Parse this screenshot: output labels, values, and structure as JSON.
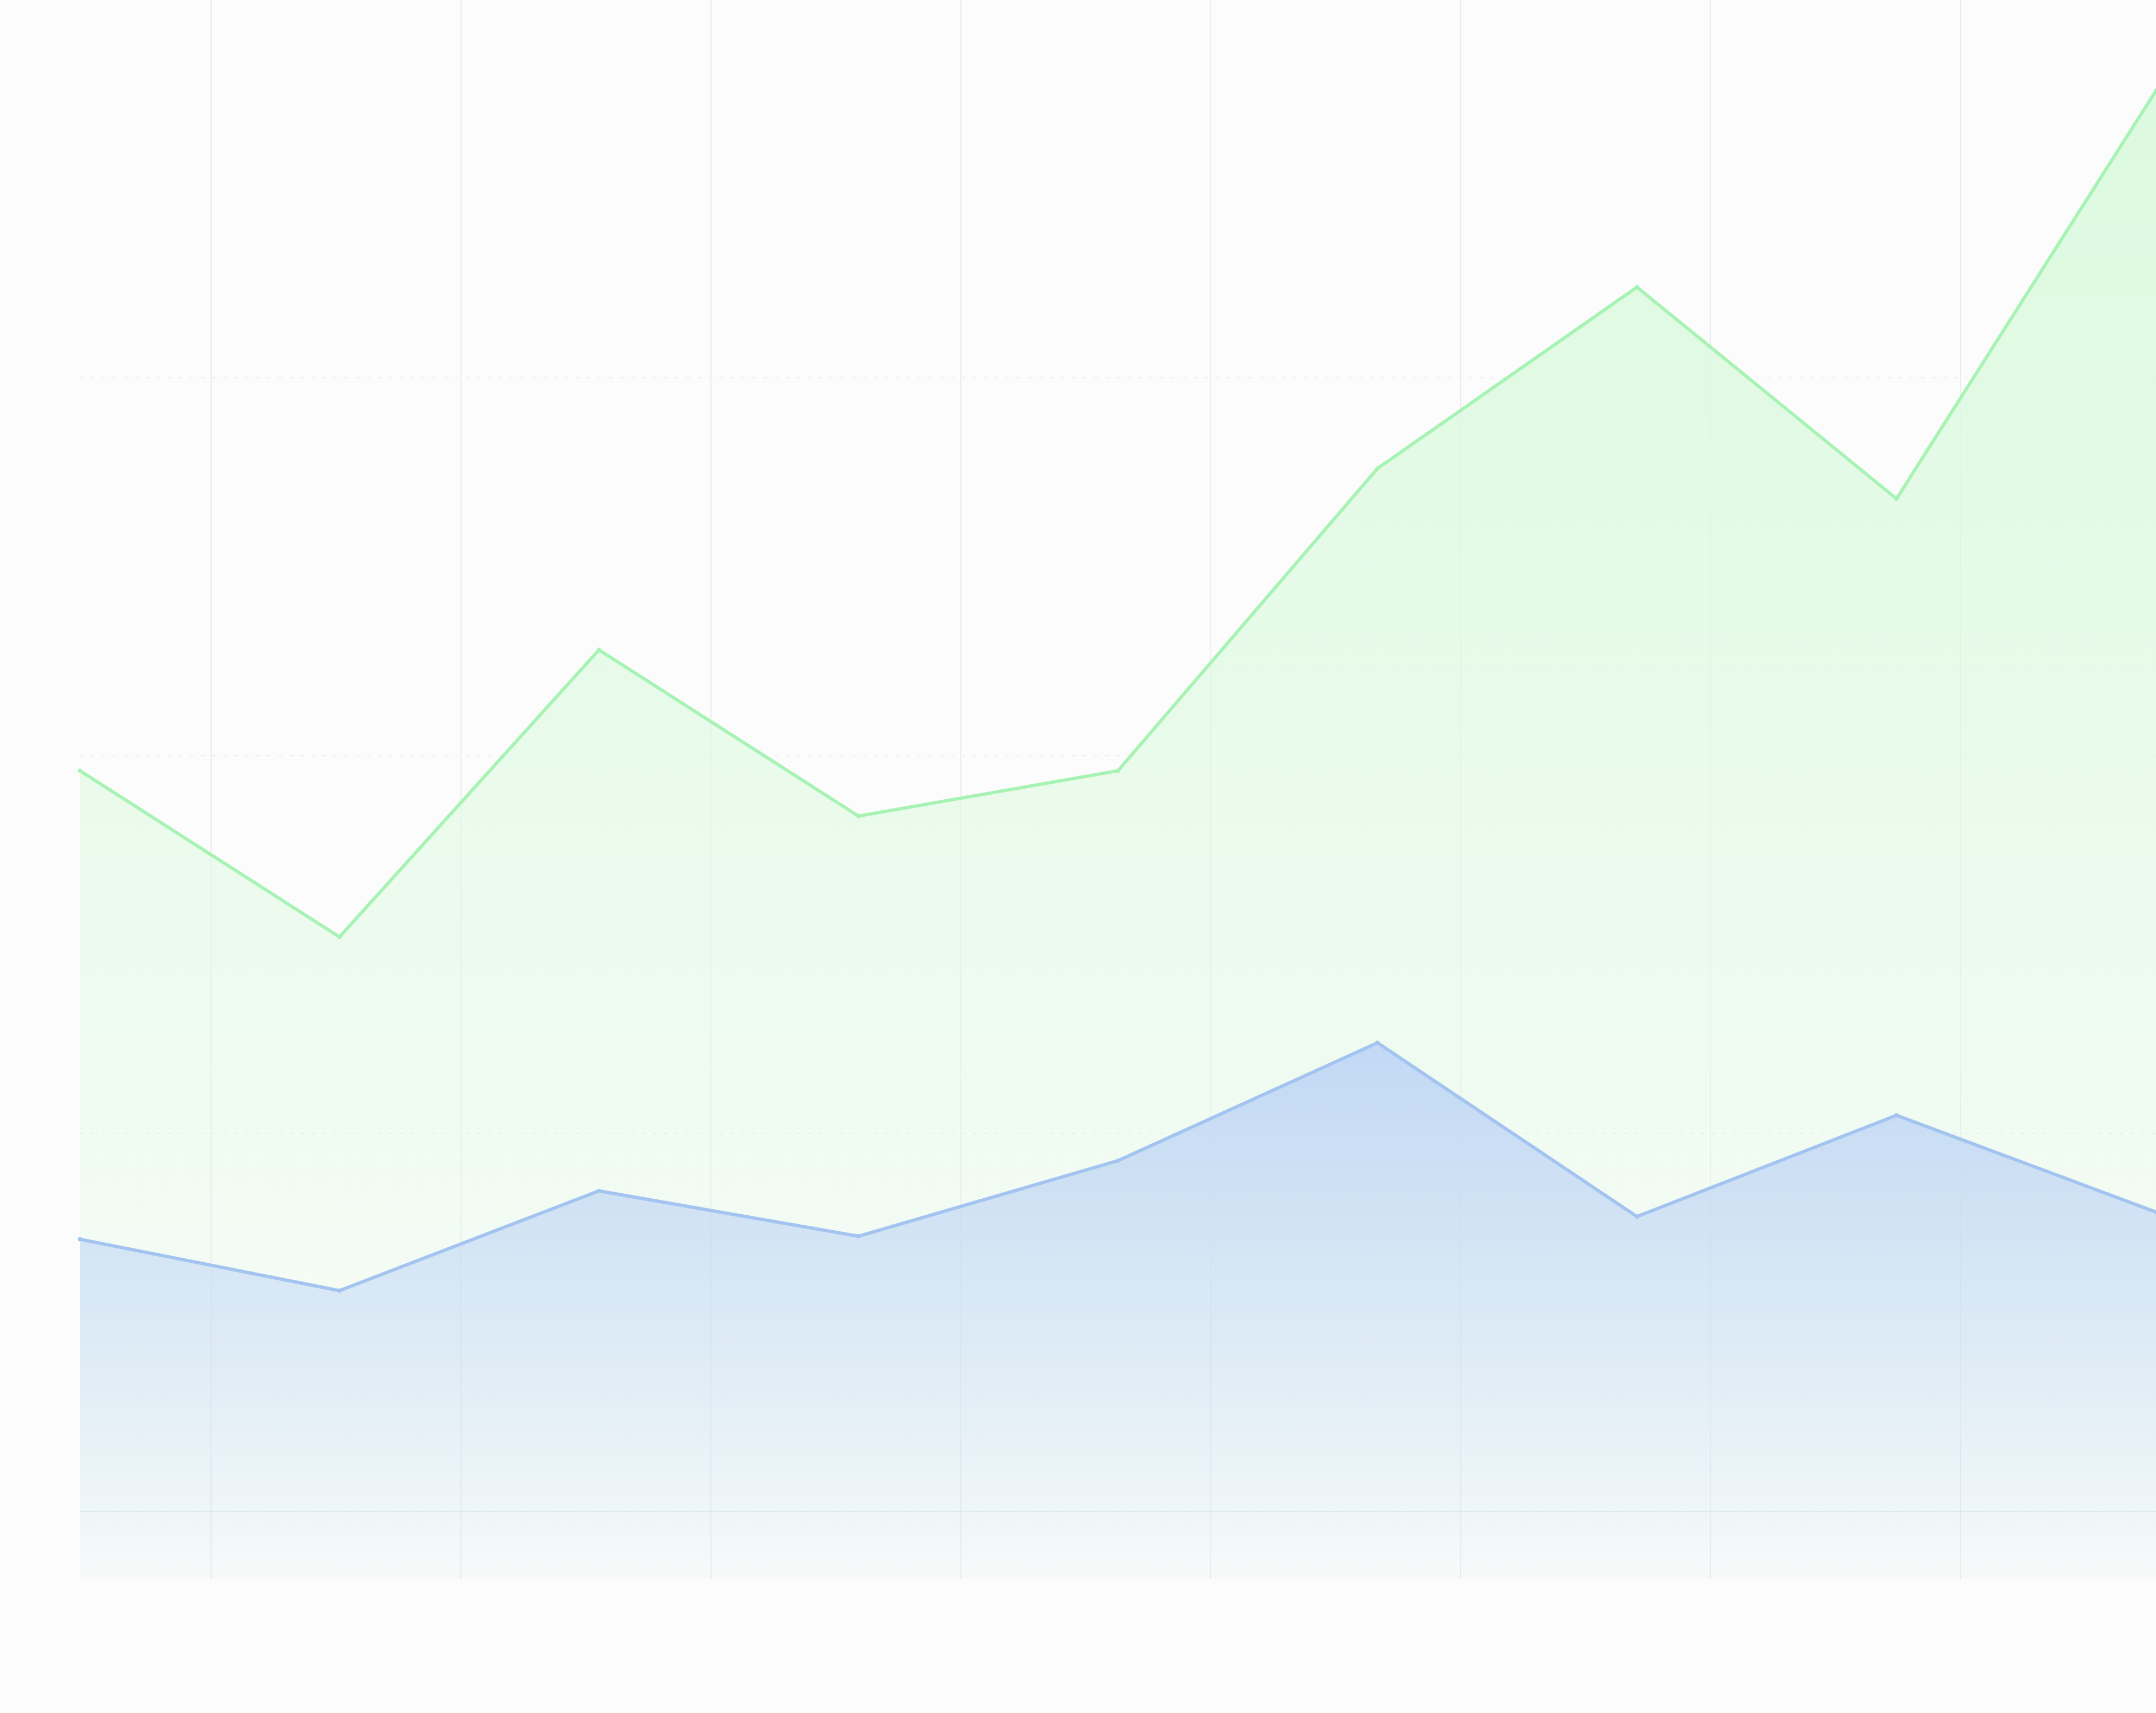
{
  "chart_data": {
    "type": "area",
    "title": "",
    "xlabel": "",
    "ylabel": "",
    "x": [
      0,
      1,
      2,
      3,
      4,
      5,
      6,
      7,
      8
    ],
    "ylim": [
      0,
      100
    ],
    "grid": {
      "vertical": true,
      "horizontal": true
    },
    "legend": "none",
    "series": [
      {
        "key": "green",
        "values": [
          49,
          38,
          57,
          46,
          49,
          69,
          81,
          67,
          94
        ],
        "color": "#a7f3b4",
        "fill": "#dcfadf"
      },
      {
        "key": "blue",
        "values": [
          18,
          14.6,
          21.2,
          18.2,
          23.2,
          31,
          19.5,
          26.2,
          19.8
        ],
        "color": "#a3c3f0",
        "fill": "#c9dcf6"
      }
    ],
    "colors": {
      "background": "#fcfcfc",
      "grid": "#ececf0"
    }
  }
}
